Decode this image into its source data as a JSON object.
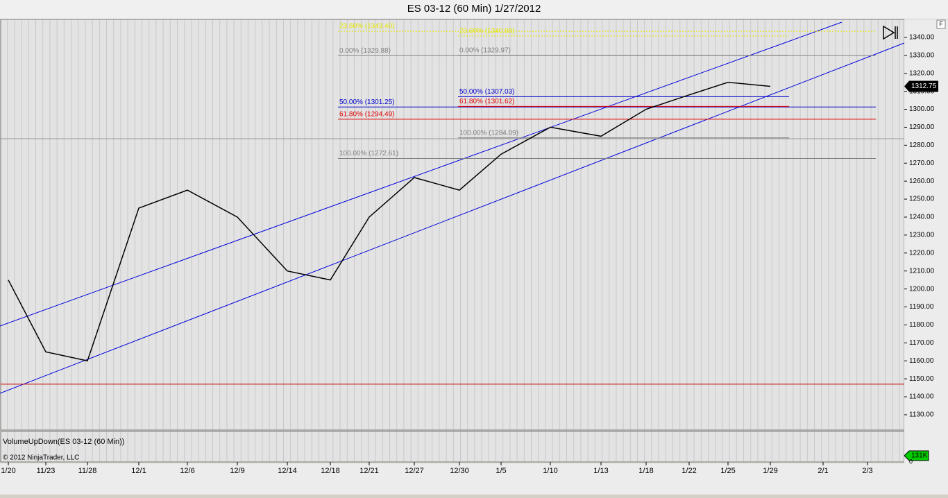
{
  "chart_data": {
    "type": "line",
    "title": "ES 03-12 (60 Min)  1/27/2012",
    "categories": [
      "1/20",
      "11/23",
      "11/28",
      "12/1",
      "12/6",
      "12/9",
      "12/14",
      "12/18",
      "12/21",
      "12/27",
      "12/30",
      "1/5",
      "1/10",
      "1/13",
      "1/18",
      "1/22",
      "1/25",
      "1/29",
      "2/1",
      "2/3"
    ],
    "series": [
      {
        "name": "ES 03-12",
        "color": "#000000",
        "values": [
          1205,
          1165,
          1160,
          1245,
          1255,
          1240,
          1210,
          1205,
          1240,
          1262,
          1255,
          1275,
          1290,
          1285,
          1300,
          1308,
          1315,
          1312.75,
          null,
          null
        ]
      }
    ],
    "last_price": {
      "value": 1312.75,
      "label": "1312.75"
    },
    "ylim": [
      1121.5,
      1350
    ],
    "yticks": [
      {
        "value": 1130,
        "label": "1130.00"
      },
      {
        "value": 1140,
        "label": "1140.00"
      },
      {
        "value": 1150,
        "label": "1150.00"
      },
      {
        "value": 1160,
        "label": "1160.00"
      },
      {
        "value": 1170,
        "label": "1170.00"
      },
      {
        "value": 1180,
        "label": "1180.00"
      },
      {
        "value": 1190,
        "label": "1190.00"
      },
      {
        "value": 1200,
        "label": "1200.00"
      },
      {
        "value": 1210,
        "label": "1210.00"
      },
      {
        "value": 1220,
        "label": "1220.00"
      },
      {
        "value": 1230,
        "label": "1230.00"
      },
      {
        "value": 1240,
        "label": "1240.00"
      },
      {
        "value": 1250,
        "label": "1250.00"
      },
      {
        "value": 1260,
        "label": "1260.00"
      },
      {
        "value": 1270,
        "label": "1270.00"
      },
      {
        "value": 1280,
        "label": "1280.00"
      },
      {
        "value": 1290,
        "label": "1290.00"
      },
      {
        "value": 1300,
        "label": "1300.00"
      },
      {
        "value": 1310,
        "label": "1310.00"
      },
      {
        "value": 1320,
        "label": "1320.00"
      },
      {
        "value": 1330,
        "label": "1330.00"
      },
      {
        "value": 1340,
        "label": "1340.00"
      }
    ],
    "fib_sets": [
      {
        "levels": [
          {
            "value": 1343.4,
            "label": "23.60% (1343.40)",
            "color": "#e6e600"
          },
          {
            "value": 1329.88,
            "label": "0.00% (1329.88)",
            "color": "#808080"
          },
          {
            "value": 1301.25,
            "label": "50.00% (1301.25)",
            "color": "#0000cc"
          },
          {
            "value": 1294.49,
            "label": "61.80% (1294.49)",
            "color": "#e00000"
          },
          {
            "value": 1272.61,
            "label": "100.00% (1272.61)",
            "color": "#808080"
          }
        ]
      },
      {
        "levels": [
          {
            "value": 1340.8,
            "label": "23.60% (1340.80)",
            "color": "#e6e600"
          },
          {
            "value": 1329.97,
            "label": "0.00% (1329.97)",
            "color": "#808080"
          },
          {
            "value": 1307.03,
            "label": "50.00% (1307.03)",
            "color": "#0000cc"
          },
          {
            "value": 1301.62,
            "label": "61.80% (1301.62)",
            "color": "#e00000"
          },
          {
            "value": 1284.09,
            "label": "100.00% (1284.09)",
            "color": "#808080"
          }
        ]
      }
    ],
    "support_line": 1147,
    "volume": {
      "label": "VolumeUpDown(ES 03-12 (60 Min))",
      "ymax": {
        "value": 131000,
        "label": "131K"
      },
      "ymin": 0
    },
    "copyright": "© 2012 NinjaTrader, LLC",
    "corner_label": "F"
  }
}
